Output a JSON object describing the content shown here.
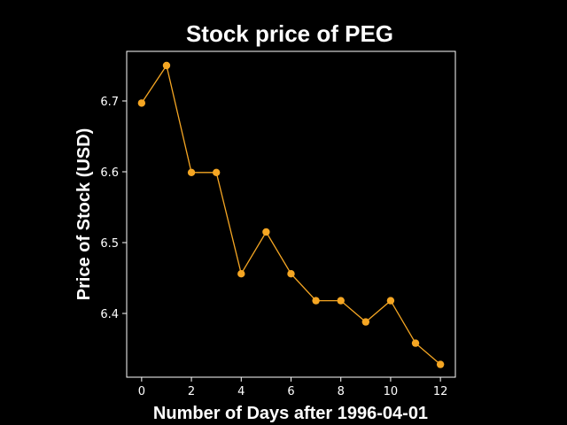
{
  "chart_data": {
    "type": "line",
    "title": "Stock price of PEG",
    "xlabel": "Number of Days after 1996-04-01",
    "ylabel": "Price of Stock (USD)",
    "x": [
      0,
      1,
      2,
      3,
      4,
      5,
      6,
      7,
      8,
      9,
      10,
      11,
      12
    ],
    "series": [
      {
        "values": [
          6.697,
          6.75,
          6.599,
          6.599,
          6.456,
          6.515,
          6.456,
          6.418,
          6.418,
          6.388,
          6.418,
          6.358,
          6.328
        ]
      }
    ],
    "xlim": [
      -0.6,
      12.6
    ],
    "ylim": [
      6.31,
      6.77
    ],
    "xticks": [
      0,
      2,
      4,
      6,
      8,
      10,
      12
    ],
    "xtick_labels": [
      "0",
      "2",
      "4",
      "6",
      "8",
      "10",
      "12"
    ],
    "yticks": [
      6.4,
      6.5,
      6.6,
      6.7
    ],
    "ytick_labels": [
      "6.4",
      "6.5",
      "6.6",
      "6.7"
    ],
    "grid": false,
    "colors": {
      "background": "#000000",
      "axes": "#ffffff",
      "line": "#f5a623",
      "text": "#ffffff"
    }
  }
}
